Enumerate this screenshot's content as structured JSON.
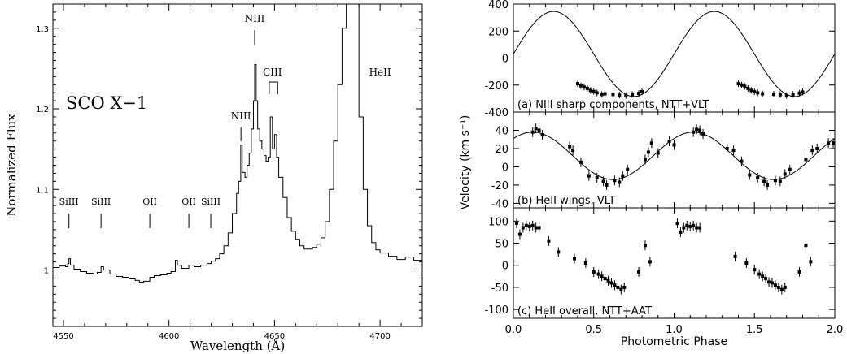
{
  "chart_data": [
    {
      "type": "line",
      "xlabel": "Wavelength (Å)",
      "ylabel": "Normalized Flux",
      "xlim": [
        4545,
        4720
      ],
      "ylim": [
        0.93,
        1.33
      ],
      "xticks": [
        4550,
        4600,
        4650,
        4700
      ],
      "yticks": [
        1.0,
        1.1,
        1.2,
        1.3
      ],
      "annotation": "SCO X−1",
      "line_ids": [
        {
          "label": "SiIII",
          "x": 4552.6
        },
        {
          "label": "SiIII",
          "x": 4567.8
        },
        {
          "label": "OII",
          "x": 4590.9
        },
        {
          "label": "OII",
          "x": 4609.4
        },
        {
          "label": "SiIII",
          "x": 4619.8
        },
        {
          "label": "NIII",
          "x": 4634.1
        },
        {
          "label": "NIII",
          "x": 4640.6
        },
        {
          "label": "CIII",
          "x": 4649.0
        },
        {
          "label": "HeII",
          "x": 4700.0
        }
      ],
      "spectrum": [
        [
          4545,
          1.003
        ],
        [
          4548,
          1.005
        ],
        [
          4551,
          1.004
        ],
        [
          4552,
          1.008
        ],
        [
          4552.6,
          1.014
        ],
        [
          4553.3,
          1.006
        ],
        [
          4555,
          1.001
        ],
        [
          4558,
          0.998
        ],
        [
          4561,
          0.996
        ],
        [
          4564,
          0.995
        ],
        [
          4566,
          0.997
        ],
        [
          4567.8,
          1.004
        ],
        [
          4569,
          1.0
        ],
        [
          4572,
          0.995
        ],
        [
          4575,
          0.992
        ],
        [
          4578,
          0.991
        ],
        [
          4581,
          0.989
        ],
        [
          4584,
          0.987
        ],
        [
          4586,
          0.985
        ],
        [
          4588,
          0.986
        ],
        [
          4590.9,
          0.991
        ],
        [
          4593,
          0.993
        ],
        [
          4596,
          0.994
        ],
        [
          4599,
          0.996
        ],
        [
          4601,
          0.998
        ],
        [
          4603,
          1.012
        ],
        [
          4604,
          1.006
        ],
        [
          4606,
          1.002
        ],
        [
          4609.4,
          1.006
        ],
        [
          4612,
          1.004
        ],
        [
          4615,
          1.006
        ],
        [
          4618,
          1.008
        ],
        [
          4620,
          1.011
        ],
        [
          4622,
          1.014
        ],
        [
          4624,
          1.02
        ],
        [
          4626,
          1.03
        ],
        [
          4628,
          1.046
        ],
        [
          4630,
          1.07
        ],
        [
          4632,
          1.095
        ],
        [
          4633,
          1.11
        ],
        [
          4634,
          1.155
        ],
        [
          4634.7,
          1.121
        ],
        [
          4636,
          1.115
        ],
        [
          4637,
          1.13
        ],
        [
          4638,
          1.145
        ],
        [
          4639,
          1.175
        ],
        [
          4640,
          1.21
        ],
        [
          4640.6,
          1.255
        ],
        [
          4641.3,
          1.21
        ],
        [
          4642,
          1.175
        ],
        [
          4643,
          1.16
        ],
        [
          4644,
          1.15
        ],
        [
          4645,
          1.142
        ],
        [
          4646,
          1.135
        ],
        [
          4647,
          1.14
        ],
        [
          4648,
          1.19
        ],
        [
          4649,
          1.15
        ],
        [
          4650,
          1.168
        ],
        [
          4651,
          1.14
        ],
        [
          4652,
          1.115
        ],
        [
          4654,
          1.09
        ],
        [
          4656,
          1.065
        ],
        [
          4658,
          1.048
        ],
        [
          4660,
          1.038
        ],
        [
          4662,
          1.03
        ],
        [
          4664,
          1.026
        ],
        [
          4666,
          1.026
        ],
        [
          4668,
          1.028
        ],
        [
          4670,
          1.032
        ],
        [
          4672,
          1.04
        ],
        [
          4674,
          1.06
        ],
        [
          4676,
          1.1
        ],
        [
          4678,
          1.16
        ],
        [
          4680,
          1.23
        ],
        [
          4682,
          1.3
        ],
        [
          4684,
          1.4
        ],
        [
          4686,
          1.42
        ],
        [
          4688,
          1.33
        ],
        [
          4690,
          1.19
        ],
        [
          4692,
          1.1
        ],
        [
          4694,
          1.055
        ],
        [
          4696,
          1.034
        ],
        [
          4698,
          1.025
        ],
        [
          4700,
          1.021
        ],
        [
          4704,
          1.017
        ],
        [
          4708,
          1.013
        ],
        [
          4712,
          1.016
        ],
        [
          4716,
          1.012
        ],
        [
          4720,
          1.01
        ]
      ]
    },
    {
      "type": "scatter",
      "xlabel": "Photometric Phase",
      "ylabel": "Velocity (km s⁻¹)",
      "xlim": [
        0.0,
        2.0
      ],
      "xticks": [
        0.0,
        0.5,
        1.0,
        1.5,
        2.0
      ],
      "xticklabels": [
        "0.0",
        "0.5",
        "1.0",
        "1.5",
        "2.0"
      ],
      "panels": [
        {
          "label": "(a) NIII sharp components, NTT+VLT",
          "ylim": [
            -400,
            400
          ],
          "yticks": [
            -400,
            -200,
            0,
            200,
            400
          ],
          "model": {
            "amplitude": 315,
            "offset": 30,
            "peak_phase": 0.25
          },
          "points": [
            [
              0.4,
              -190
            ],
            [
              0.42,
              -205
            ],
            [
              0.44,
              -215
            ],
            [
              0.46,
              -225
            ],
            [
              0.48,
              -240
            ],
            [
              0.5,
              -248
            ],
            [
              0.52,
              -258
            ],
            [
              0.55,
              -270
            ],
            [
              0.57,
              -265
            ],
            [
              0.62,
              -270
            ],
            [
              0.66,
              -275
            ],
            [
              0.7,
              -278
            ],
            [
              0.74,
              -270
            ],
            [
              0.78,
              -262
            ],
            [
              0.8,
              -250
            ],
            [
              1.4,
              -190
            ],
            [
              1.42,
              -200
            ],
            [
              1.44,
              -210
            ],
            [
              1.46,
              -225
            ],
            [
              1.48,
              -240
            ],
            [
              1.5,
              -250
            ],
            [
              1.52,
              -258
            ],
            [
              1.55,
              -265
            ],
            [
              1.62,
              -268
            ],
            [
              1.66,
              -272
            ],
            [
              1.7,
              -278
            ],
            [
              1.74,
              -270
            ],
            [
              1.78,
              -260
            ],
            [
              1.8,
              -252
            ]
          ]
        },
        {
          "label": "(b) HeII wings, VLT",
          "ylim": [
            -45,
            60
          ],
          "yticks": [
            -40,
            -20,
            0,
            20,
            40
          ],
          "model": {
            "amplitude": 26,
            "offset": 12,
            "peak_phase": 0.12
          },
          "points": [
            [
              0.12,
              38
            ],
            [
              0.14,
              42
            ],
            [
              0.16,
              40
            ],
            [
              0.18,
              35
            ],
            [
              0.35,
              22
            ],
            [
              0.37,
              18
            ],
            [
              0.42,
              5
            ],
            [
              0.47,
              -10
            ],
            [
              0.52,
              -12
            ],
            [
              0.56,
              -16
            ],
            [
              0.58,
              -20
            ],
            [
              0.63,
              -15
            ],
            [
              0.66,
              -17
            ],
            [
              0.68,
              -10
            ],
            [
              0.71,
              -3
            ],
            [
              0.82,
              8
            ],
            [
              0.84,
              16
            ],
            [
              0.86,
              26
            ],
            [
              0.9,
              15
            ],
            [
              0.97,
              28
            ],
            [
              1.0,
              24
            ],
            [
              1.12,
              38
            ],
            [
              1.14,
              41
            ],
            [
              1.16,
              40
            ],
            [
              1.18,
              36
            ],
            [
              1.33,
              20
            ],
            [
              1.37,
              18
            ],
            [
              1.42,
              6
            ],
            [
              1.47,
              -9
            ],
            [
              1.52,
              -12
            ],
            [
              1.56,
              -16
            ],
            [
              1.58,
              -20
            ],
            [
              1.63,
              -15
            ],
            [
              1.66,
              -16
            ],
            [
              1.69,
              -8
            ],
            [
              1.72,
              -3
            ],
            [
              1.82,
              8
            ],
            [
              1.86,
              18
            ],
            [
              1.89,
              20
            ],
            [
              1.96,
              26
            ],
            [
              1.99,
              26
            ]
          ]
        },
        {
          "label": "(c) HeII overall, NTT+AAT",
          "ylim": [
            -120,
            130
          ],
          "yticks": [
            -100,
            -50,
            0,
            50,
            100
          ],
          "points": [
            [
              0.02,
              95
            ],
            [
              0.04,
              70
            ],
            [
              0.06,
              85
            ],
            [
              0.08,
              90
            ],
            [
              0.1,
              88
            ],
            [
              0.12,
              90
            ],
            [
              0.14,
              85
            ],
            [
              0.16,
              85
            ],
            [
              0.22,
              55
            ],
            [
              0.28,
              30
            ],
            [
              0.38,
              15
            ],
            [
              0.45,
              5
            ],
            [
              0.5,
              -15
            ],
            [
              0.53,
              -20
            ],
            [
              0.55,
              -25
            ],
            [
              0.57,
              -30
            ],
            [
              0.59,
              -35
            ],
            [
              0.61,
              -40
            ],
            [
              0.63,
              -45
            ],
            [
              0.65,
              -50
            ],
            [
              0.67,
              -55
            ],
            [
              0.69,
              -50
            ],
            [
              0.78,
              -15
            ],
            [
              0.82,
              45
            ],
            [
              0.85,
              8
            ],
            [
              1.02,
              95
            ],
            [
              1.04,
              75
            ],
            [
              1.06,
              85
            ],
            [
              1.08,
              90
            ],
            [
              1.1,
              88
            ],
            [
              1.12,
              90
            ],
            [
              1.14,
              85
            ],
            [
              1.16,
              85
            ],
            [
              1.38,
              20
            ],
            [
              1.45,
              5
            ],
            [
              1.5,
              -10
            ],
            [
              1.53,
              -20
            ],
            [
              1.55,
              -25
            ],
            [
              1.57,
              -30
            ],
            [
              1.59,
              -38
            ],
            [
              1.61,
              -40
            ],
            [
              1.63,
              -45
            ],
            [
              1.65,
              -50
            ],
            [
              1.67,
              -55
            ],
            [
              1.69,
              -50
            ],
            [
              1.78,
              -15
            ],
            [
              1.82,
              45
            ],
            [
              1.85,
              8
            ]
          ]
        }
      ]
    }
  ]
}
